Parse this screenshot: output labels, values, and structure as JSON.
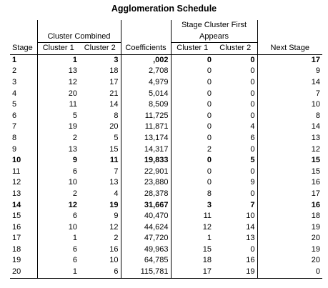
{
  "title": "Agglomeration Schedule",
  "headers": {
    "stage": "Stage",
    "cluster_combined": "Cluster Combined",
    "cluster1": "Cluster 1",
    "cluster2": "Cluster 2",
    "coefficients": "Coefficients",
    "stage_cluster_first_appears_line1": "Stage Cluster First",
    "stage_cluster_first_appears_line2": "Appears",
    "sc_cluster1": "Cluster 1",
    "sc_cluster2": "Cluster 2",
    "next_stage": "Next Stage"
  },
  "rows": [
    {
      "stage": "1",
      "c1": "1",
      "c2": "3",
      "coef": ",002",
      "s1": "0",
      "s2": "0",
      "next": "17",
      "bold": true
    },
    {
      "stage": "2",
      "c1": "13",
      "c2": "18",
      "coef": "2,708",
      "s1": "0",
      "s2": "0",
      "next": "9",
      "bold": false
    },
    {
      "stage": "3",
      "c1": "12",
      "c2": "17",
      "coef": "4,979",
      "s1": "0",
      "s2": "0",
      "next": "14",
      "bold": false
    },
    {
      "stage": "4",
      "c1": "20",
      "c2": "21",
      "coef": "5,014",
      "s1": "0",
      "s2": "0",
      "next": "7",
      "bold": false
    },
    {
      "stage": "5",
      "c1": "11",
      "c2": "14",
      "coef": "8,509",
      "s1": "0",
      "s2": "0",
      "next": "10",
      "bold": false
    },
    {
      "stage": "6",
      "c1": "5",
      "c2": "8",
      "coef": "11,725",
      "s1": "0",
      "s2": "0",
      "next": "8",
      "bold": false
    },
    {
      "stage": "7",
      "c1": "19",
      "c2": "20",
      "coef": "11,871",
      "s1": "0",
      "s2": "4",
      "next": "14",
      "bold": false
    },
    {
      "stage": "8",
      "c1": "2",
      "c2": "5",
      "coef": "13,174",
      "s1": "0",
      "s2": "6",
      "next": "13",
      "bold": false
    },
    {
      "stage": "9",
      "c1": "13",
      "c2": "15",
      "coef": "14,317",
      "s1": "2",
      "s2": "0",
      "next": "12",
      "bold": false
    },
    {
      "stage": "10",
      "c1": "9",
      "c2": "11",
      "coef": "19,833",
      "s1": "0",
      "s2": "5",
      "next": "15",
      "bold": true
    },
    {
      "stage": "11",
      "c1": "6",
      "c2": "7",
      "coef": "22,901",
      "s1": "0",
      "s2": "0",
      "next": "15",
      "bold": false
    },
    {
      "stage": "12",
      "c1": "10",
      "c2": "13",
      "coef": "23,880",
      "s1": "0",
      "s2": "9",
      "next": "16",
      "bold": false
    },
    {
      "stage": "13",
      "c1": "2",
      "c2": "4",
      "coef": "28,378",
      "s1": "8",
      "s2": "0",
      "next": "17",
      "bold": false
    },
    {
      "stage": "14",
      "c1": "12",
      "c2": "19",
      "coef": "31,667",
      "s1": "3",
      "s2": "7",
      "next": "16",
      "bold": true
    },
    {
      "stage": "15",
      "c1": "6",
      "c2": "9",
      "coef": "40,470",
      "s1": "11",
      "s2": "10",
      "next": "18",
      "bold": false
    },
    {
      "stage": "16",
      "c1": "10",
      "c2": "12",
      "coef": "44,624",
      "s1": "12",
      "s2": "14",
      "next": "19",
      "bold": false
    },
    {
      "stage": "17",
      "c1": "1",
      "c2": "2",
      "coef": "47,720",
      "s1": "1",
      "s2": "13",
      "next": "20",
      "bold": false
    },
    {
      "stage": "18",
      "c1": "6",
      "c2": "16",
      "coef": "49,963",
      "s1": "15",
      "s2": "0",
      "next": "19",
      "bold": false
    },
    {
      "stage": "19",
      "c1": "6",
      "c2": "10",
      "coef": "64,785",
      "s1": "18",
      "s2": "16",
      "next": "20",
      "bold": false
    },
    {
      "stage": "20",
      "c1": "1",
      "c2": "6",
      "coef": "115,781",
      "s1": "17",
      "s2": "19",
      "next": "0",
      "bold": false
    }
  ]
}
